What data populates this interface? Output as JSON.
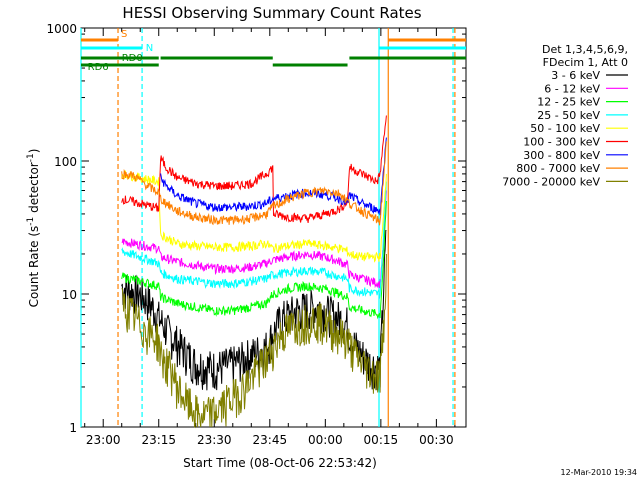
{
  "chart_data": {
    "type": "line",
    "title": "HESSI Observing Summary Count Rates",
    "xlabel": "Start Time (08-Oct-06 22:53:42)",
    "ylabel": "Count Rate (s⁻¹ detector⁻¹)",
    "yscale": "log",
    "ylim": [
      1,
      1000
    ],
    "xlim_minutes": [
      -6,
      98
    ],
    "x_ticks": [
      {
        "label": "23:00",
        "min": 0
      },
      {
        "label": "23:15",
        "min": 15
      },
      {
        "label": "23:30",
        "min": 30
      },
      {
        "label": "23:45",
        "min": 45
      },
      {
        "label": "00:00",
        "min": 60
      },
      {
        "label": "00:15",
        "min": 75
      },
      {
        "label": "00:30",
        "min": 90
      }
    ],
    "y_ticks": [
      {
        "label": "1",
        "v": 1
      },
      {
        "label": "10",
        "v": 10
      },
      {
        "label": "100",
        "v": 100
      },
      {
        "label": "1000",
        "v": 1000
      }
    ],
    "legend_header": [
      "Det 1,3,4,5,6,9,",
      "FDecim 1, Att 0"
    ],
    "legend_position": "right",
    "series": [
      {
        "name": "3 - 6 keV",
        "color": "#000000",
        "x": [
          5,
          6,
          8,
          10,
          12,
          14,
          15.2,
          18,
          21,
          25,
          30,
          35,
          40,
          44,
          45.8,
          48,
          52,
          56,
          58,
          60,
          62,
          64,
          66,
          67,
          69,
          72,
          74.8,
          75.8,
          76.5
        ],
        "y": [
          11.5,
          11,
          10.5,
          10,
          9,
          7.5,
          6.5,
          5,
          4,
          3,
          2.8,
          3,
          3.5,
          4,
          5,
          6.5,
          7.5,
          8,
          8,
          7.5,
          7,
          6.5,
          6,
          4.5,
          3.8,
          3,
          2.8,
          12,
          30
        ]
      },
      {
        "name": "6 - 12 keV",
        "color": "#ff00ff",
        "x": [
          5,
          10,
          15,
          15.5,
          20,
          25,
          30,
          35,
          40,
          44,
          45.8,
          50,
          55,
          60,
          64,
          66,
          66.5,
          70,
          74.8,
          75.8,
          76.5
        ],
        "y": [
          25,
          23.5,
          22,
          19,
          17.5,
          16.5,
          15.5,
          15.5,
          16,
          17,
          18,
          19,
          20,
          19,
          17.5,
          16.5,
          14,
          13,
          12,
          25,
          60
        ]
      },
      {
        "name": "12 - 25 keV",
        "color": "#00ff00",
        "x": [
          5,
          10,
          15,
          15.5,
          20,
          25,
          30,
          35,
          40,
          44,
          45.8,
          50,
          55,
          60,
          64,
          66,
          66.5,
          70,
          74.8,
          75.8,
          76.5
        ],
        "y": [
          13.5,
          12.5,
          11.5,
          9.5,
          8.5,
          8,
          7.5,
          7.5,
          8,
          8.5,
          10,
          11,
          11.5,
          11,
          10,
          9.5,
          8,
          7.5,
          7,
          20,
          50
        ]
      },
      {
        "name": "25 - 50 keV",
        "color": "#00ffff",
        "x": [
          5,
          10,
          15,
          15.5,
          20,
          25,
          30,
          35,
          40,
          44,
          45.8,
          50,
          55,
          60,
          64,
          66,
          66.5,
          70,
          74.8,
          75.8,
          76.5
        ],
        "y": [
          21,
          19,
          17,
          14.5,
          13,
          12.5,
          12,
          12,
          12.5,
          13,
          14,
          14.5,
          15,
          14.5,
          13.5,
          13,
          11,
          10.5,
          10,
          30,
          70
        ]
      },
      {
        "name": "50 - 100 keV",
        "color": "#ffff00",
        "x": [
          5,
          10,
          15,
          15.5,
          20,
          25,
          30,
          35,
          40,
          44,
          45.8,
          50,
          55,
          60,
          64,
          66,
          66.5,
          70,
          74.8,
          75.8,
          76.5
        ],
        "y": [
          80,
          75,
          70,
          28,
          24,
          23,
          22.5,
          22.5,
          23,
          24,
          22,
          23,
          24,
          23,
          22,
          21,
          20,
          19,
          19,
          40,
          80
        ]
      },
      {
        "name": "100 - 300 keV",
        "color": "#ff0000",
        "x": [
          5,
          10,
          15,
          15.5,
          17,
          20,
          25,
          30,
          35,
          40,
          44,
          45.8,
          46,
          50,
          55,
          60,
          64,
          66,
          66.5,
          70,
          74,
          74.8,
          75.8,
          76.5
        ],
        "y": [
          52,
          48,
          44,
          105,
          90,
          75,
          68,
          65,
          65,
          68,
          80,
          90,
          40,
          38,
          37,
          40,
          44,
          50,
          90,
          80,
          70,
          80,
          150,
          220
        ]
      },
      {
        "name": "300 - 800 keV",
        "color": "#0000ff",
        "x": [
          15.5,
          17,
          20,
          25,
          30,
          35,
          40,
          44,
          45.8,
          50,
          55,
          60,
          64,
          66,
          66.5,
          70,
          74.8,
          75.8,
          76.5
        ],
        "y": [
          75,
          65,
          55,
          48,
          45,
          45,
          46,
          48,
          52,
          55,
          58,
          56,
          52,
          48,
          55,
          48,
          42,
          90,
          150
        ]
      },
      {
        "name": "800 - 7000 keV",
        "color": "#ff8000",
        "x": [
          5,
          8,
          10,
          12,
          15,
          15.5,
          18,
          20,
          25,
          30,
          35,
          40,
          44,
          45.8,
          50,
          55,
          60,
          64,
          66,
          66.5,
          70,
          74.8,
          75.8,
          76.5
        ],
        "y": [
          80,
          78,
          72,
          65,
          58,
          52,
          46,
          42,
          38,
          36,
          36,
          37,
          40,
          45,
          52,
          58,
          60,
          57,
          50,
          48,
          42,
          35,
          80,
          140
        ]
      },
      {
        "name": "7000 - 20000 keV",
        "color": "#808000",
        "x": [
          5,
          7,
          9,
          11,
          13,
          15,
          15.5,
          17,
          19,
          20,
          23,
          26,
          30,
          34,
          38,
          42,
          44,
          45.8,
          48,
          52,
          56,
          58,
          60,
          62,
          64,
          66,
          68,
          72,
          74.8,
          75.8,
          76.5
        ],
        "y": [
          8.5,
          7.5,
          6.5,
          5.5,
          5,
          4.5,
          3.5,
          3,
          2.5,
          2,
          1.5,
          1.2,
          1.3,
          1.6,
          2,
          2.8,
          3.2,
          4,
          5,
          6,
          6.5,
          6.5,
          6,
          5.5,
          5,
          4.5,
          3.5,
          2.7,
          2.5,
          6,
          20
        ]
      }
    ],
    "vertical_markers": [
      {
        "min": -6,
        "color": "#00ffff",
        "style": "solid"
      },
      {
        "min": 4,
        "color": "#ff8000",
        "style": "dashed"
      },
      {
        "min": 10.5,
        "color": "#00ffff",
        "style": "dashed"
      },
      {
        "min": 74.5,
        "color": "#00ffff",
        "style": "solid"
      },
      {
        "min": 77,
        "color": "#ff8000",
        "style": "solid"
      },
      {
        "min": 94.5,
        "color": "#00ffff",
        "style": "dashed"
      },
      {
        "min": 95,
        "color": "#ff8000",
        "style": "dashed"
      }
    ],
    "status_bars": [
      {
        "color": "#ff8000",
        "y": 1,
        "label": "S",
        "segments": [
          [
            -6,
            4
          ],
          [
            77,
            98
          ]
        ]
      },
      {
        "color": "#00ffff",
        "y": 2,
        "label": "N",
        "segments": [
          [
            -6,
            10.5
          ],
          [
            74.5,
            98
          ]
        ]
      },
      {
        "color": "#008000",
        "y": 3,
        "label": "RD0",
        "segments": [
          [
            -6,
            15
          ],
          [
            15.5,
            45.8
          ],
          [
            66.5,
            98
          ]
        ]
      },
      {
        "color": "#008000",
        "y": 4,
        "label": "RD6",
        "segments": [
          [
            -6,
            4
          ],
          [
            4,
            15
          ],
          [
            45.8,
            66
          ]
        ]
      }
    ],
    "annotations": [
      "S",
      "N",
      "RD0",
      "RD6"
    ],
    "grid": false
  },
  "timestamp": "12-Mar-2010 19:34"
}
